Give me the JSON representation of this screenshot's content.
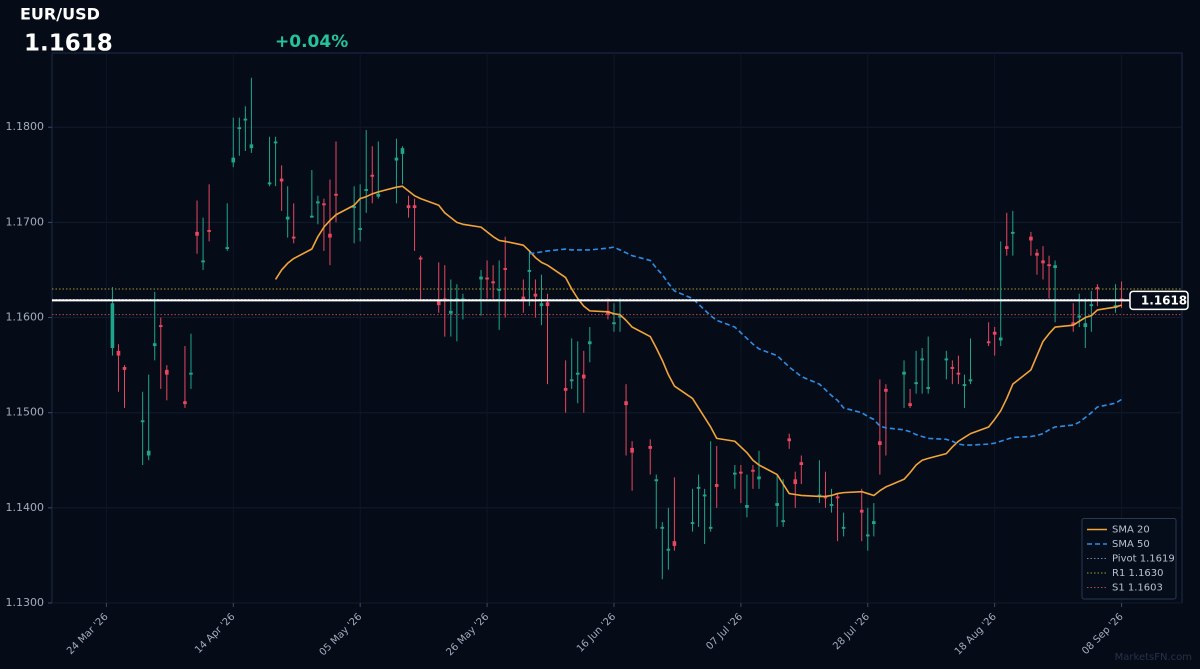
{
  "chart_data": {
    "type": "candlestick",
    "title": "EUR/USD",
    "price": 1.1618,
    "change": "+0.04%",
    "watermark": "MarketsFN.com",
    "x": [
      "2026-03-25",
      "2026-03-26",
      "2026-03-27",
      "2026-03-30",
      "2026-03-31",
      "2026-04-01",
      "2026-04-02",
      "2026-04-03",
      "2026-04-06",
      "2026-04-07",
      "2026-04-08",
      "2026-04-09",
      "2026-04-10",
      "2026-04-13",
      "2026-04-14",
      "2026-04-15",
      "2026-04-16",
      "2026-04-17",
      "2026-04-20",
      "2026-04-21",
      "2026-04-22",
      "2026-04-23",
      "2026-04-24",
      "2026-04-27",
      "2026-04-28",
      "2026-04-29",
      "2026-04-30",
      "2026-05-01",
      "2026-05-04",
      "2026-05-05",
      "2026-05-06",
      "2026-05-07",
      "2026-05-08",
      "2026-05-11",
      "2026-05-12",
      "2026-05-13",
      "2026-05-14",
      "2026-05-15",
      "2026-05-18",
      "2026-05-19",
      "2026-05-20",
      "2026-05-21",
      "2026-05-22",
      "2026-05-25",
      "2026-05-26",
      "2026-05-27",
      "2026-05-28",
      "2026-05-29",
      "2026-06-01",
      "2026-06-02",
      "2026-06-03",
      "2026-06-04",
      "2026-06-05",
      "2026-06-08",
      "2026-06-09",
      "2026-06-10",
      "2026-06-11",
      "2026-06-12",
      "2026-06-15",
      "2026-06-16",
      "2026-06-17",
      "2026-06-18",
      "2026-06-19",
      "2026-06-22",
      "2026-06-23",
      "2026-06-24",
      "2026-06-25",
      "2026-06-26",
      "2026-06-29",
      "2026-06-30",
      "2026-07-01",
      "2026-07-02",
      "2026-07-03",
      "2026-07-06",
      "2026-07-07",
      "2026-07-08",
      "2026-07-09",
      "2026-07-10",
      "2026-07-13",
      "2026-07-14",
      "2026-07-15",
      "2026-07-16",
      "2026-07-17",
      "2026-07-20",
      "2026-07-21",
      "2026-07-22",
      "2026-07-23",
      "2026-07-24",
      "2026-07-27",
      "2026-07-28",
      "2026-07-29",
      "2026-07-30",
      "2026-07-31",
      "2026-08-03",
      "2026-08-04",
      "2026-08-05",
      "2026-08-06",
      "2026-08-07",
      "2026-08-10",
      "2026-08-11",
      "2026-08-12",
      "2026-08-13",
      "2026-08-14",
      "2026-08-17",
      "2026-08-18",
      "2026-08-19",
      "2026-08-20",
      "2026-08-21",
      "2026-08-24",
      "2026-08-25",
      "2026-08-26",
      "2026-08-27",
      "2026-08-28",
      "2026-08-31",
      "2026-09-01",
      "2026-09-02",
      "2026-09-03",
      "2026-09-04",
      "2026-09-07",
      "2026-09-08"
    ],
    "open": [
      1.1568,
      1.1565,
      1.1548,
      1.149,
      1.1455,
      1.157,
      1.1592,
      1.1545,
      1.1512,
      1.154,
      1.169,
      1.1658,
      1.1692,
      1.1672,
      1.1763,
      1.1798,
      1.1807,
      1.1778,
      1.174,
      1.1783,
      1.1746,
      1.1703,
      1.1685,
      1.1705,
      1.172,
      1.172,
      1.1688,
      1.173,
      1.1715,
      1.1692,
      1.1733,
      1.175,
      1.1727,
      1.1765,
      1.1772,
      1.1718,
      1.1718,
      1.1663,
      1.1617,
      1.162,
      1.1604,
      1.1617,
      1.1618,
      1.164,
      1.1642,
      1.1638,
      1.1628,
      1.1652,
      1.1622,
      1.1648,
      1.1625,
      1.1612,
      1.1616,
      1.1526,
      1.1533,
      1.154,
      1.154,
      1.1572,
      1.1607,
      1.1593,
      1.16,
      1.1512,
      1.1463,
      1.1465,
      1.1428,
      1.1378,
      1.1355,
      1.1365,
      1.1383,
      1.142,
      1.1412,
      1.1378,
      1.1425,
      1.1435,
      1.1438,
      1.14,
      1.144,
      1.143,
      1.1402,
      1.1385,
      1.1473,
      1.143,
      1.1448,
      1.1412,
      1.1412,
      1.1402,
      1.1412,
      1.1378,
      1.1398,
      1.137,
      1.1383,
      1.147,
      1.1525,
      1.154,
      1.151,
      1.153,
      1.1555,
      1.1525,
      1.1555,
      1.1548,
      1.1542,
      1.1528,
      1.1533,
      1.1575,
      1.1585,
      1.1576,
      1.1675,
      1.1688,
      1.1685,
      1.1668,
      1.166,
      1.1656,
      1.1652,
      1.1595,
      1.16,
      1.159,
      1.1612,
      1.1632,
      1.161,
      1.162
    ],
    "high": [
      1.1632,
      1.1572,
      1.155,
      1.1522,
      1.154,
      1.1627,
      1.16,
      1.155,
      1.157,
      1.1583,
      1.1723,
      1.1705,
      1.174,
      1.172,
      1.181,
      1.181,
      1.1822,
      1.1852,
      1.179,
      1.179,
      1.176,
      1.1738,
      1.172,
      1.1755,
      1.1728,
      1.1725,
      1.1745,
      1.1785,
      1.1738,
      1.174,
      1.1797,
      1.178,
      1.1785,
      1.1788,
      1.178,
      1.1728,
      1.1725,
      1.1665,
      1.1658,
      1.1655,
      1.164,
      1.1635,
      1.1625,
      1.165,
      1.166,
      1.1655,
      1.166,
      1.1685,
      1.164,
      1.167,
      1.164,
      1.1645,
      1.1625,
      1.1555,
      1.1578,
      1.1575,
      1.1565,
      1.159,
      1.162,
      1.1615,
      1.162,
      1.153,
      1.147,
      1.1472,
      1.1435,
      1.1385,
      1.14,
      1.1432,
      1.142,
      1.1435,
      1.142,
      1.147,
      1.1465,
      1.1445,
      1.1445,
      1.1435,
      1.1445,
      1.146,
      1.1435,
      1.143,
      1.1478,
      1.1438,
      1.1455,
      1.145,
      1.1438,
      1.142,
      1.1415,
      1.1395,
      1.142,
      1.14,
      1.1405,
      1.1535,
      1.153,
      1.1555,
      1.1525,
      1.1565,
      1.1568,
      1.158,
      1.1565,
      1.1555,
      1.156,
      1.154,
      1.1578,
      1.1595,
      1.159,
      1.168,
      1.171,
      1.1712,
      1.169,
      1.1672,
      1.1675,
      1.1665,
      1.166,
      1.1615,
      1.1625,
      1.162,
      1.1628,
      1.1635,
      1.1635,
      1.1638
    ],
    "low": [
      1.156,
      1.1522,
      1.1505,
      1.1445,
      1.145,
      1.1555,
      1.1525,
      1.1513,
      1.1505,
      1.1525,
      1.1667,
      1.165,
      1.168,
      1.167,
      1.1758,
      1.177,
      1.1775,
      1.1773,
      1.1738,
      1.1738,
      1.1712,
      1.1684,
      1.1678,
      1.1705,
      1.1698,
      1.167,
      1.1655,
      1.17,
      1.1678,
      1.168,
      1.171,
      1.172,
      1.1725,
      1.172,
      1.174,
      1.1705,
      1.167,
      1.1618,
      1.1605,
      1.158,
      1.158,
      1.1575,
      1.1598,
      1.1602,
      1.162,
      1.162,
      1.1587,
      1.16,
      1.1605,
      1.1612,
      1.16,
      1.1592,
      1.153,
      1.15,
      1.1525,
      1.151,
      1.15,
      1.1553,
      1.1598,
      1.1585,
      1.1585,
      1.1455,
      1.1418,
      1.1435,
      1.1378,
      1.1325,
      1.1335,
      1.1355,
      1.1375,
      1.138,
      1.1362,
      1.1375,
      1.14,
      1.142,
      1.1405,
      1.139,
      1.142,
      1.142,
      1.138,
      1.138,
      1.1462,
      1.14,
      1.1425,
      1.1405,
      1.14,
      1.1395,
      1.1365,
      1.137,
      1.1365,
      1.1355,
      1.137,
      1.1435,
      1.1455,
      1.1505,
      1.1505,
      1.152,
      1.152,
      1.152,
      1.1535,
      1.153,
      1.153,
      1.1505,
      1.153,
      1.157,
      1.156,
      1.157,
      1.1665,
      1.1665,
      1.1665,
      1.1645,
      1.164,
      1.162,
      1.1595,
      1.1585,
      1.159,
      1.1568,
      1.1585,
      1.1612,
      1.1605,
      1.161
    ],
    "close": [
      1.1615,
      1.156,
      1.1545,
      1.1492,
      1.146,
      1.1573,
      1.159,
      1.154,
      1.1509,
      1.1542,
      1.1686,
      1.166,
      1.169,
      1.1674,
      1.1768,
      1.18,
      1.1809,
      1.1782,
      1.1742,
      1.1785,
      1.1743,
      1.1706,
      1.1683,
      1.1707,
      1.1722,
      1.1718,
      1.1684,
      1.1728,
      1.1717,
      1.1694,
      1.1735,
      1.1748,
      1.173,
      1.1768,
      1.1778,
      1.1715,
      1.1715,
      1.1661,
      1.1613,
      1.1618,
      1.1607,
      1.162,
      1.162,
      1.1643,
      1.164,
      1.1636,
      1.163,
      1.165,
      1.1618,
      1.165,
      1.1622,
      1.1615,
      1.1612,
      1.1523,
      1.1535,
      1.1542,
      1.1536,
      1.1575,
      1.1603,
      1.1595,
      1.1602,
      1.1508,
      1.1458,
      1.1462,
      1.143,
      1.138,
      1.1357,
      1.136,
      1.1385,
      1.1422,
      1.1414,
      1.138,
      1.1422,
      1.1437,
      1.1436,
      1.1403,
      1.1438,
      1.1433,
      1.1405,
      1.1387,
      1.147,
      1.1425,
      1.1445,
      1.1414,
      1.141,
      1.1404,
      1.141,
      1.138,
      1.1395,
      1.1372,
      1.1386,
      1.1466,
      1.1522,
      1.1543,
      1.1507,
      1.1532,
      1.1557,
      1.1527,
      1.1557,
      1.1546,
      1.154,
      1.153,
      1.1535,
      1.1573,
      1.1582,
      1.1579,
      1.1672,
      1.169,
      1.1681,
      1.1665,
      1.1657,
      1.1654,
      1.1655,
      1.1592,
      1.1602,
      1.1594,
      1.1614,
      1.163,
      1.1613,
      1.1618
    ],
    "up_color": "#1fa58a",
    "down_color": "#e8475f",
    "series": [
      {
        "name": "SMA 20",
        "color": "#f2a33a",
        "dash": "solid",
        "values": [
          null,
          null,
          null,
          null,
          null,
          null,
          null,
          null,
          null,
          null,
          null,
          null,
          null,
          null,
          null,
          null,
          null,
          null,
          null,
          1.164,
          1.165,
          1.1657,
          1.1662,
          1.1672,
          1.1685,
          1.1695,
          1.1702,
          1.1708,
          1.1718,
          1.1725,
          1.1727,
          1.173,
          1.1732,
          1.1737,
          1.1738,
          1.1733,
          1.1728,
          1.1725,
          1.1718,
          1.171,
          1.1705,
          1.17,
          1.1698,
          1.1695,
          1.169,
          1.1685,
          1.1681,
          1.168,
          1.1676,
          1.167,
          1.1663,
          1.1658,
          1.1655,
          1.1642,
          1.163,
          1.162,
          1.1612,
          1.1607,
          1.1606,
          1.1604,
          1.1603,
          1.1597,
          1.159,
          1.158,
          1.1568,
          1.1555,
          1.154,
          1.1528,
          1.1515,
          1.1505,
          1.1495,
          1.1485,
          1.1473,
          1.147,
          1.1464,
          1.1458,
          1.145,
          1.1445,
          1.1435,
          1.1425,
          1.1415,
          1.1414,
          1.1413,
          1.1412,
          1.1412,
          1.1413,
          1.1415,
          1.1416,
          1.1417,
          1.1415,
          1.1413,
          1.1418,
          1.1422,
          1.143,
          1.1437,
          1.1445,
          1.145,
          1.1452,
          1.1457,
          1.1464,
          1.147,
          1.1474,
          1.1478,
          1.1485,
          1.1493,
          1.1502,
          1.1515,
          1.153,
          1.1545,
          1.156,
          1.1575,
          1.1583,
          1.159,
          1.1592,
          1.1596,
          1.16,
          1.1602,
          1.1608,
          1.1611,
          1.1613
        ]
      },
      {
        "name": "SMA 50",
        "color": "#2d8de6",
        "dash": "dashed",
        "values": [
          null,
          null,
          null,
          null,
          null,
          null,
          null,
          null,
          null,
          null,
          null,
          null,
          null,
          null,
          null,
          null,
          null,
          null,
          null,
          null,
          null,
          null,
          null,
          null,
          null,
          null,
          null,
          null,
          null,
          null,
          null,
          null,
          null,
          null,
          null,
          null,
          null,
          null,
          null,
          null,
          null,
          null,
          null,
          null,
          null,
          null,
          null,
          null,
          null,
          1.1667,
          1.1668,
          1.1669,
          1.167,
          1.1672,
          1.1671,
          1.1671,
          1.1671,
          1.1671,
          1.1673,
          1.1674,
          1.1671,
          1.1668,
          1.1665,
          1.166,
          1.1652,
          1.1645,
          1.1636,
          1.1628,
          1.162,
          1.1614,
          1.1608,
          1.1602,
          1.1597,
          1.159,
          1.1584,
          1.1578,
          1.1572,
          1.1567,
          1.156,
          1.1554,
          1.1548,
          1.1543,
          1.1538,
          1.153,
          1.1524,
          1.1518,
          1.1513,
          1.1505,
          1.15,
          1.1496,
          1.1493,
          1.1486,
          1.1484,
          1.1482,
          1.148,
          1.1477,
          1.1475,
          1.1473,
          1.1472,
          1.147,
          1.1467,
          1.1466,
          1.1466,
          1.1467,
          1.1468,
          1.147,
          1.1472,
          1.1474,
          1.1475,
          1.1476,
          1.1478,
          1.1482,
          1.1485,
          1.1487,
          1.149,
          1.1495,
          1.15,
          1.1506,
          1.151,
          1.1514
        ]
      }
    ],
    "levels": [
      {
        "name": "Pivot 1.1619",
        "value": 1.1619,
        "color": "#7d8698"
      },
      {
        "name": "R1 1.1630",
        "value": 1.163,
        "color": "#a8962c"
      },
      {
        "name": "S1 1.1603",
        "value": 1.1603,
        "color": "#b5474a"
      }
    ],
    "xlim": [
      "2026-03-15",
      "2026-09-18"
    ],
    "xticks": [
      {
        "value": "2026-03-24",
        "label": "24 Mar '26"
      },
      {
        "value": "2026-04-14",
        "label": "14 Apr '26"
      },
      {
        "value": "2026-05-05",
        "label": "05 May '26"
      },
      {
        "value": "2026-05-26",
        "label": "26 May '26"
      },
      {
        "value": "2026-06-16",
        "label": "16 Jun '26"
      },
      {
        "value": "2026-07-07",
        "label": "07 Jul '26"
      },
      {
        "value": "2026-07-28",
        "label": "28 Jul '26"
      },
      {
        "value": "2026-08-18",
        "label": "18 Aug '26"
      },
      {
        "value": "2026-09-08",
        "label": "08 Sep '26"
      }
    ],
    "ylim": [
      1.13,
      1.1878
    ],
    "yticks": [
      {
        "value": 1.13,
        "label": "1.1300"
      },
      {
        "value": 1.14,
        "label": "1.1400"
      },
      {
        "value": 1.15,
        "label": "1.1500"
      },
      {
        "value": 1.16,
        "label": "1.1600"
      },
      {
        "value": 1.17,
        "label": "1.1700"
      },
      {
        "value": 1.18,
        "label": "1.1800"
      }
    ],
    "grid": true,
    "legend": "lower right"
  }
}
